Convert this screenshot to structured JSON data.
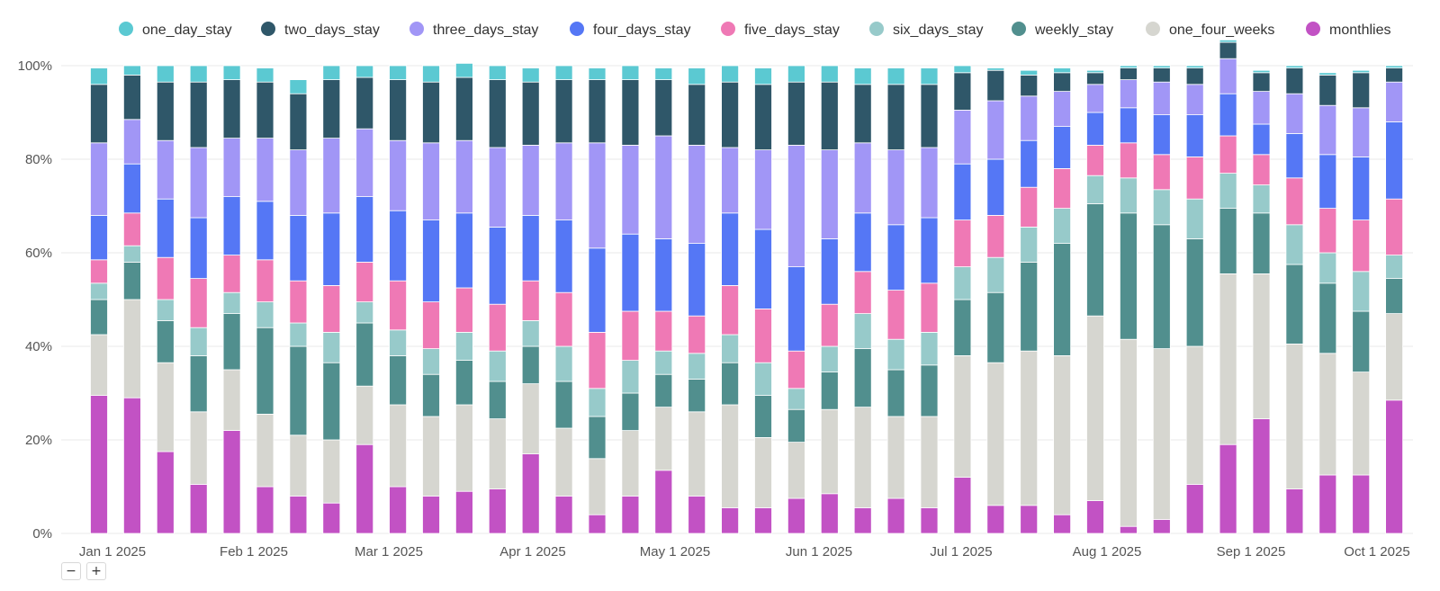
{
  "controls": {
    "zoom_out": "−",
    "zoom_in": "+"
  },
  "chart_data": {
    "type": "bar",
    "stacked": true,
    "normalized": true,
    "title": "",
    "xlabel": "",
    "ylabel": "",
    "ylim": [
      0,
      100
    ],
    "y_ticks": [
      "0%",
      "20%",
      "40%",
      "60%",
      "80%",
      "100%"
    ],
    "x_tick_labels": [
      "Jan 1 2025",
      "Feb 1 2025",
      "Mar 1 2025",
      "Apr 1 2025",
      "May 1 2025",
      "Jun 1 2025",
      "Jul 1 2025",
      "Aug 1 2025",
      "Sep 1 2025",
      "Oct 1 2025"
    ],
    "categories": [
      "2025-01-01",
      "2025-01-08",
      "2025-01-15",
      "2025-01-22",
      "2025-01-29",
      "2025-02-05",
      "2025-02-12",
      "2025-02-19",
      "2025-02-26",
      "2025-03-05",
      "2025-03-12",
      "2025-03-19",
      "2025-03-26",
      "2025-04-02",
      "2025-04-09",
      "2025-04-16",
      "2025-04-23",
      "2025-04-30",
      "2025-05-07",
      "2025-05-14",
      "2025-05-21",
      "2025-05-28",
      "2025-06-04",
      "2025-06-11",
      "2025-06-18",
      "2025-06-25",
      "2025-07-02",
      "2025-07-09",
      "2025-07-16",
      "2025-07-23",
      "2025-07-30",
      "2025-08-06",
      "2025-08-13",
      "2025-08-20",
      "2025-08-27",
      "2025-09-03",
      "2025-09-10",
      "2025-09-17",
      "2025-09-24",
      "2025-10-01"
    ],
    "grid": true,
    "legend_position": "top",
    "series": [
      {
        "name": "monthlies",
        "color": "#c252c4",
        "values": [
          29.5,
          29,
          17.5,
          10.5,
          22,
          10,
          8,
          6.5,
          19,
          10,
          8,
          9,
          9.5,
          17,
          8,
          4,
          8,
          13.5,
          8,
          5.5,
          5.5,
          7.5,
          8.5,
          5.5,
          7.5,
          5.5,
          12,
          6,
          6,
          4,
          7,
          1.5,
          3,
          10.5,
          19,
          24.5,
          9.5,
          12.5,
          12.5,
          28.5
        ]
      },
      {
        "name": "one_four_weeks",
        "color": "#d6d6d0",
        "values": [
          13,
          21,
          19,
          15.5,
          13,
          15.5,
          13,
          13.5,
          12.5,
          17.5,
          17,
          18.5,
          15,
          15,
          14.5,
          12,
          14,
          13.5,
          18,
          22,
          15,
          12,
          18,
          21.5,
          17.5,
          19.5,
          26,
          30.5,
          33,
          34,
          39.5,
          40,
          36.5,
          29.5,
          36.5,
          31,
          31,
          26,
          22,
          18.5
        ]
      },
      {
        "name": "weekly_stay",
        "color": "#518f8e",
        "values": [
          7.5,
          8,
          9,
          12,
          12,
          18.5,
          19,
          16.5,
          13.5,
          10.5,
          9,
          9.5,
          8,
          8,
          10,
          9,
          8,
          7,
          7,
          9,
          9,
          7,
          8,
          12.5,
          10,
          11,
          12,
          15,
          19,
          24,
          24,
          27,
          26.5,
          23,
          14,
          13,
          17,
          15,
          13,
          7.5
        ]
      },
      {
        "name": "six_days_stay",
        "color": "#97caca",
        "values": [
          3.5,
          3.5,
          4.5,
          6,
          4.5,
          5.5,
          5,
          6.5,
          4.5,
          5.5,
          5.5,
          6,
          6.5,
          5.5,
          7.5,
          6,
          7,
          5,
          5.5,
          6,
          7,
          4.5,
          5.5,
          7.5,
          6.5,
          7,
          7,
          7.5,
          7.5,
          7.5,
          6,
          7.5,
          7.5,
          8.5,
          7.5,
          6,
          8.5,
          6.5,
          8.5,
          5
        ]
      },
      {
        "name": "five_days_stay",
        "color": "#ef79b5",
        "values": [
          5,
          7,
          9,
          10.5,
          8,
          9,
          9,
          10,
          8.5,
          10.5,
          10,
          9.5,
          10,
          8.5,
          11.5,
          12,
          10.5,
          8.5,
          8,
          10.5,
          11.5,
          8,
          9,
          9,
          10.5,
          10.5,
          10,
          9,
          8.5,
          8.5,
          6.5,
          7.5,
          7.5,
          9,
          8,
          6.5,
          10,
          9.5,
          11,
          12
        ]
      },
      {
        "name": "four_days_stay",
        "color": "#5577f5",
        "values": [
          9.5,
          10.5,
          12.5,
          13,
          12.5,
          12.5,
          14,
          15.5,
          14,
          15,
          17.5,
          16,
          16.5,
          14,
          15.5,
          18,
          16.5,
          15.5,
          15.5,
          15.5,
          17,
          18,
          14,
          12.5,
          14,
          14,
          12,
          12,
          10,
          9,
          7,
          7.5,
          8.5,
          9,
          9,
          6.5,
          9.5,
          11.5,
          13.5,
          16.5
        ]
      },
      {
        "name": "three_days_stay",
        "color": "#a196f6",
        "values": [
          15.5,
          9.5,
          12.5,
          15,
          12.5,
          13.5,
          14,
          16,
          14.5,
          15,
          16.5,
          15.5,
          17,
          15,
          16.5,
          22.5,
          19,
          22,
          21,
          14,
          17,
          26,
          19,
          15,
          16,
          15,
          11.5,
          12.5,
          9.5,
          7.5,
          6,
          6,
          7,
          6.5,
          7.5,
          7,
          8.5,
          10.5,
          10.5,
          8.5
        ]
      },
      {
        "name": "two_days_stay",
        "color": "#2f5769",
        "values": [
          12.5,
          9.5,
          12.5,
          14,
          12.5,
          12,
          12,
          12.5,
          11,
          13,
          13,
          13.5,
          14.5,
          13.5,
          13.5,
          13.5,
          14,
          12,
          13,
          14,
          14,
          13.5,
          14.5,
          12.5,
          14,
          13.5,
          8,
          6.5,
          4.5,
          4,
          2.5,
          2.5,
          3,
          3.5,
          3.5,
          4,
          5.5,
          6.5,
          7.5,
          3
        ]
      },
      {
        "name": "one_day_stay",
        "color": "#5bc9d2",
        "values": [
          3.5,
          2,
          3.5,
          3.5,
          3,
          3,
          3,
          3,
          2.5,
          3,
          3.5,
          3,
          3,
          3,
          3,
          2.5,
          3,
          2.5,
          3.5,
          3.5,
          3.5,
          3.5,
          3.5,
          3.5,
          3.5,
          3.5,
          1.5,
          0.5,
          1,
          1,
          0.5,
          0.5,
          0.5,
          0.5,
          0.5,
          0.5,
          0.5,
          0.5,
          0.5,
          0.5
        ]
      }
    ],
    "legend_order": [
      "one_day_stay",
      "two_days_stay",
      "three_days_stay",
      "four_days_stay",
      "five_days_stay",
      "six_days_stay",
      "weekly_stay",
      "one_four_weeks",
      "monthlies"
    ]
  }
}
